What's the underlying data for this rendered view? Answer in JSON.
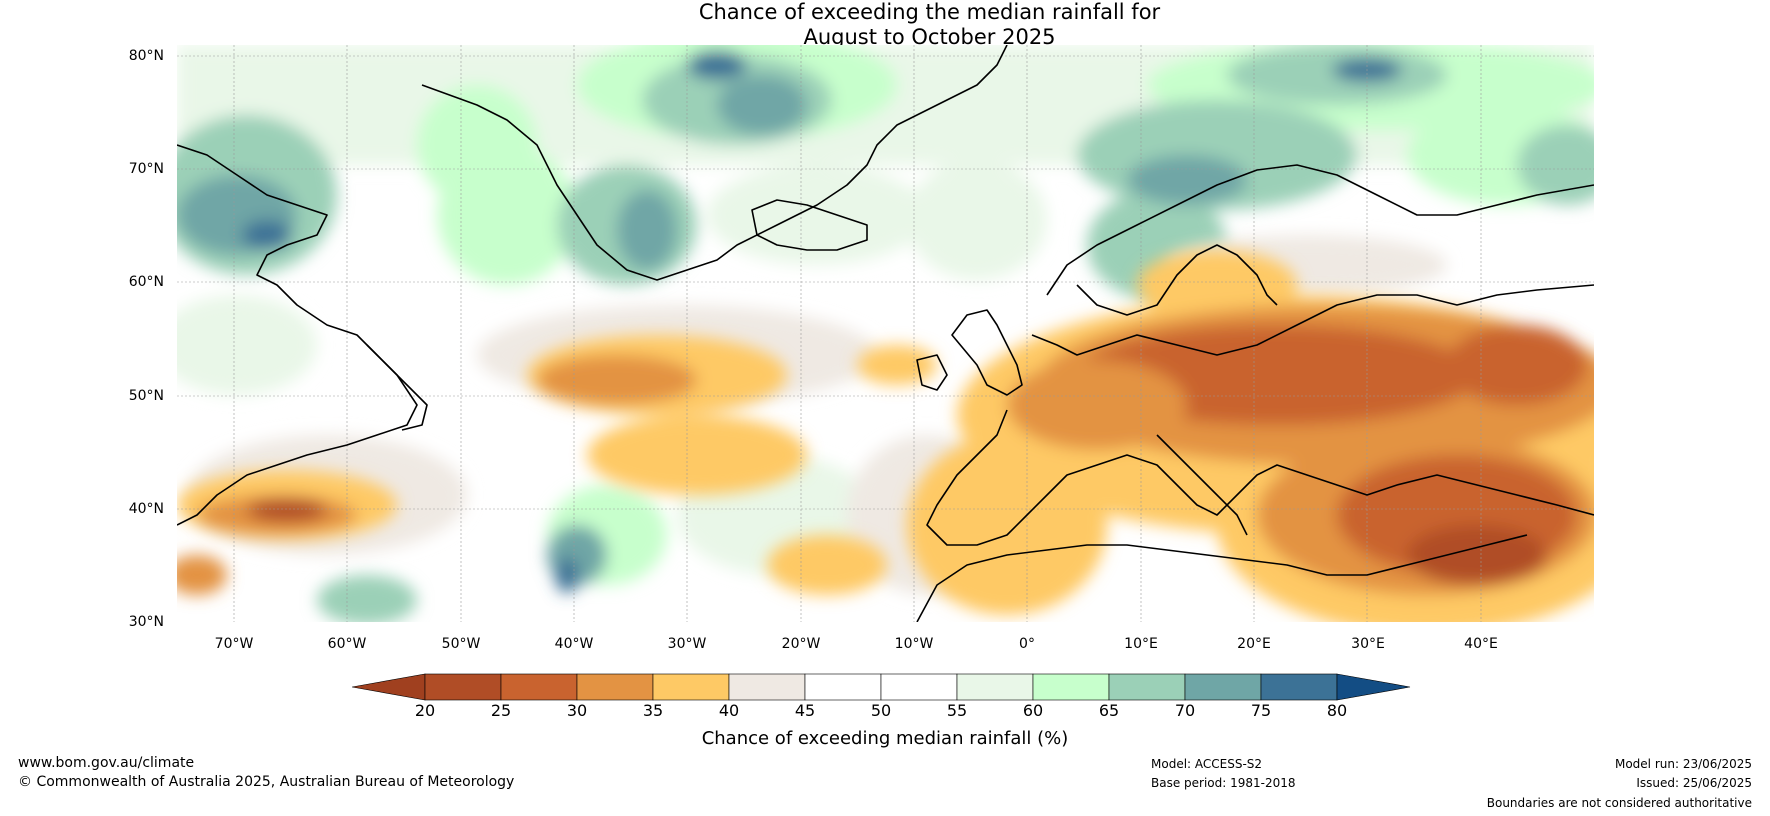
{
  "title_line1": "Chance of exceeding the median rainfall for",
  "title_line2": "August to October 2025",
  "latitude_labels": [
    "80°N",
    "70°N",
    "60°N",
    "50°N",
    "40°N",
    "30°N"
  ],
  "longitude_labels": [
    "70°W",
    "60°W",
    "50°W",
    "40°W",
    "30°W",
    "20°W",
    "10°W",
    "0°",
    "10°E",
    "20°E",
    "30°E",
    "40°E"
  ],
  "colorbar": {
    "label": "Chance of exceeding median rainfall (%)",
    "ticks": [
      "20",
      "25",
      "30",
      "35",
      "40",
      "45",
      "50",
      "55",
      "60",
      "65",
      "70",
      "75",
      "80"
    ],
    "colors": [
      "#a0401f",
      "#b04d26",
      "#c9632f",
      "#e39343",
      "#fec965",
      "#efe9e3",
      "#ffffff",
      "#ffffff",
      "#e9f7e8",
      "#c7ffcc",
      "#9bd0b7",
      "#6fa6a6",
      "#3c7296",
      "#134d84"
    ]
  },
  "footer": {
    "website": "www.bom.gov.au/climate",
    "copyright": "© Commonwealth of Australia 2025, Australian Bureau of Meteorology",
    "model": "Model: ACCESS-S2",
    "base_period": "Base period: 1981-2018",
    "model_run": "Model run: 23/06/2025",
    "issued": "Issued: 25/06/2025",
    "disclaimer": "Boundaries are not considered authoritative"
  }
}
